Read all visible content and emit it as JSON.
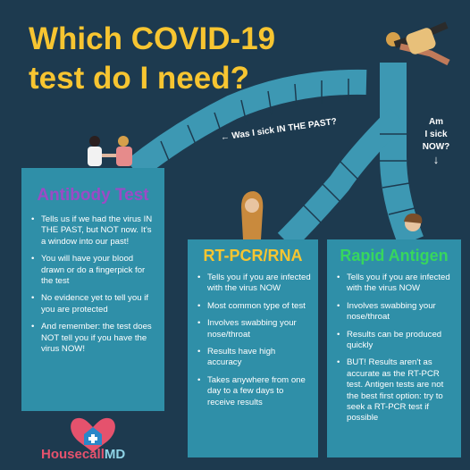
{
  "title": "Which COVID-19 test do I need?",
  "question_past": "← Was I sick IN THE PAST?",
  "question_now_line1": "Am",
  "question_now_line2": "I sick",
  "question_now_line3": "NOW?",
  "question_now_arrow": "↓",
  "antibody": {
    "title": "Antibody Test",
    "bullets": [
      "Tells us if we had the virus IN THE PAST, but NOT now. It's a window into our past!",
      "You will have your blood drawn or do a fingerpick for the test",
      "No evidence yet to tell you if you are protected",
      "And remember: the test does NOT tell you if you have the virus NOW!"
    ]
  },
  "pcr": {
    "title": "RT-PCR/RNA",
    "bullets": [
      "Tells you if you are infected with the virus NOW",
      "Most common type of test",
      "Involves swabbing your nose/throat",
      "Results have high accuracy",
      "Takes anywhere from one day to a few days to receive results"
    ]
  },
  "antigen": {
    "title": "Rapid Antigen",
    "bullets": [
      "Tells you if you are infected with the virus NOW",
      "Involves swabbing your nose/throat",
      "Results can be produced quickly",
      "BUT! Results aren't as accurate as the RT-PCR test. Antigen tests are not the best first option: try to seek a RT-PCR test if possible"
    ]
  },
  "logo": {
    "part1": "Housecall",
    "part2": "MD"
  },
  "colors": {
    "background": "#1d3a4f",
    "title": "#f7c531",
    "card": "#2f8fa8",
    "antibody_title": "#9b4bc6",
    "pcr_title": "#f7c531",
    "antigen_title": "#37d65e",
    "path": "#3d98b3"
  }
}
